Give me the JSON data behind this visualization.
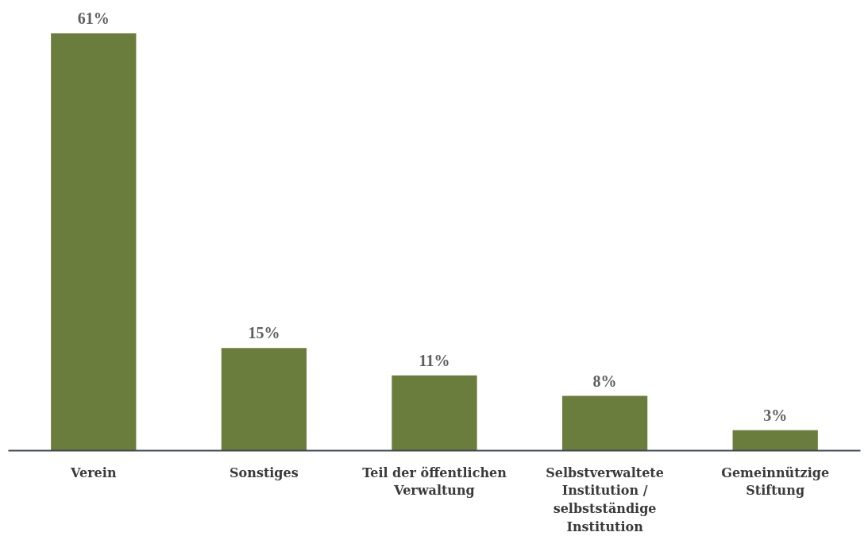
{
  "chart_data": {
    "type": "bar",
    "categories": [
      "Verein",
      "Sonstiges",
      "Teil der öffentlichen\nVerwaltung",
      "Selbstverwaltete\nInstitution /\nselbstständige\nInstitution",
      "Gemeinnützige\nStiftung"
    ],
    "values": [
      61,
      15,
      11,
      8,
      3
    ],
    "value_labels": [
      "61%",
      "15%",
      "11%",
      "8%",
      "3%"
    ],
    "color": "#6b7d3c",
    "grid": false
  }
}
